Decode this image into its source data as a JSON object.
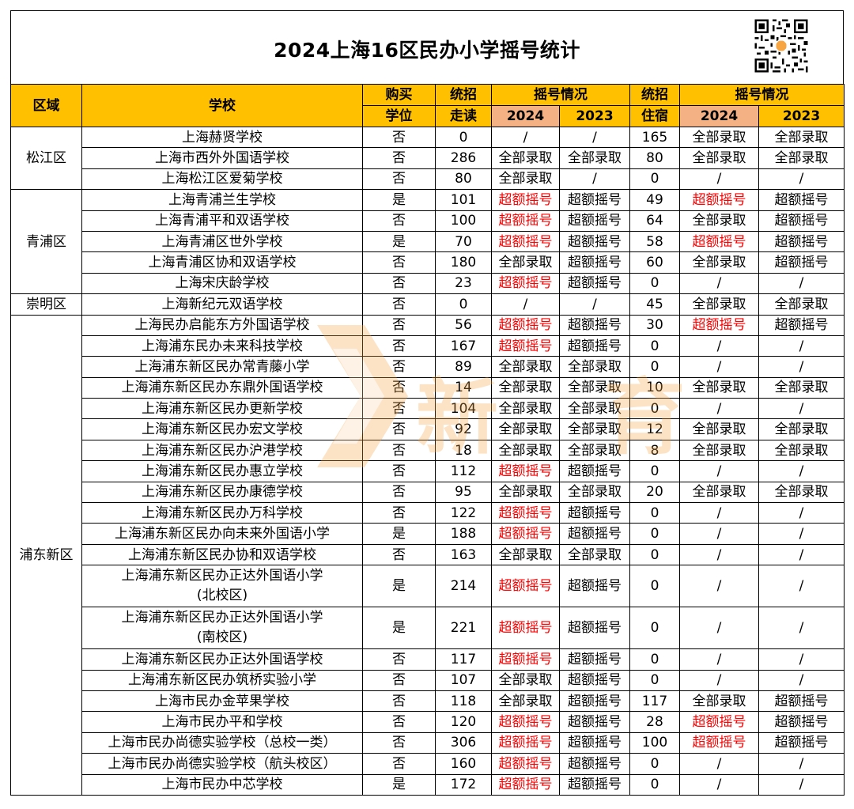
{
  "title": "2024上海16区民办小学摇号统计",
  "colors": {
    "header_yellow": "#FFC000",
    "header_orange": "#F4B183",
    "over_quota": "#FF0000"
  },
  "icons": {
    "qr": "qr-code-icon",
    "logo": "watermark-logo-icon"
  },
  "headers": {
    "district": "区域",
    "school": "学校",
    "purchase_l1": "购买",
    "purchase_l2": "学位",
    "day_l1": "统招",
    "day_l2": "走读",
    "lottery": "摇号情况",
    "y2024": "2024",
    "y2023": "2023",
    "board_l1": "统招",
    "board_l2": "住宿",
    "lottery_b": "摇号情况",
    "y2024_b": "2024",
    "y2023_b": "2023"
  },
  "districts": [
    "松江区",
    "青浦区",
    "崇明区",
    "浦东新区"
  ],
  "rows": [
    {
      "school": "上海赫贤学校",
      "buy": "否",
      "day": "0",
      "d24": "/",
      "d23": "/",
      "board": "165",
      "b24": "全部录取",
      "b23": "全部录取"
    },
    {
      "school": "上海市西外外国语学校",
      "buy": "否",
      "day": "286",
      "d24": "全部录取",
      "d23": "全部录取",
      "board": "80",
      "b24": "全部录取",
      "b23": "全部录取"
    },
    {
      "school": "上海松江区爱菊学校",
      "buy": "否",
      "day": "80",
      "d24": "全部录取",
      "d23": "/",
      "board": "0",
      "b24": "/",
      "b23": "/"
    },
    {
      "school": "上海青浦兰生学校",
      "buy": "是",
      "day": "101",
      "d24": "超额摇号",
      "d23": "超额摇号",
      "board": "49",
      "b24": "超额摇号",
      "b23": "超额摇号"
    },
    {
      "school": "上海青浦平和双语学校",
      "buy": "否",
      "day": "100",
      "d24": "超额摇号",
      "d23": "超额摇号",
      "board": "64",
      "b24": "全部录取",
      "b23": "超额摇号"
    },
    {
      "school": "上海青浦区世外学校",
      "buy": "是",
      "day": "70",
      "d24": "超额摇号",
      "d23": "超额摇号",
      "board": "58",
      "b24": "超额摇号",
      "b23": "超额摇号"
    },
    {
      "school": "上海青浦区协和双语学校",
      "buy": "否",
      "day": "180",
      "d24": "全部录取",
      "d23": "超额摇号",
      "board": "60",
      "b24": "全部录取",
      "b23": "超额摇号"
    },
    {
      "school": "上海宋庆龄学校",
      "buy": "否",
      "day": "23",
      "d24": "超额摇号",
      "d23": "超额摇号",
      "board": "0",
      "b24": "/",
      "b23": "/"
    },
    {
      "school": "上海新纪元双语学校",
      "buy": "否",
      "day": "0",
      "d24": "/",
      "d23": "/",
      "board": "45",
      "b24": "全部录取",
      "b23": "全部录取"
    },
    {
      "school": "上海民办启能东方外国语学校",
      "buy": "否",
      "day": "56",
      "d24": "超额摇号",
      "d23": "超额摇号",
      "board": "30",
      "b24": "超额摇号",
      "b23": "超额摇号"
    },
    {
      "school": "上海浦东民办未来科技学校",
      "buy": "否",
      "day": "167",
      "d24": "超额摇号",
      "d23": "超额摇号",
      "board": "0",
      "b24": "/",
      "b23": "/"
    },
    {
      "school": "上海浦东新区民办常青藤小学",
      "buy": "否",
      "day": "89",
      "d24": "全部录取",
      "d23": "全部录取",
      "board": "0",
      "b24": "/",
      "b23": "/"
    },
    {
      "school": "上海浦东新区民办东鼎外国语学校",
      "buy": "否",
      "day": "14",
      "d24": "全部录取",
      "d23": "全部录取",
      "board": "10",
      "b24": "全部录取",
      "b23": "全部录取"
    },
    {
      "school": "上海浦东新区民办更新学校",
      "buy": "否",
      "day": "104",
      "d24": "全部录取",
      "d23": "全部录取",
      "board": "0",
      "b24": "/",
      "b23": "/"
    },
    {
      "school": "上海浦东新区民办宏文学校",
      "buy": "否",
      "day": "92",
      "d24": "全部录取",
      "d23": "全部录取",
      "board": "12",
      "b24": "全部录取",
      "b23": "全部录取"
    },
    {
      "school": "上海浦东新区民办沪港学校",
      "buy": "否",
      "day": "18",
      "d24": "全部录取",
      "d23": "全部录取",
      "board": "8",
      "b24": "全部录取",
      "b23": "全部录取"
    },
    {
      "school": "上海浦东新区民办惠立学校",
      "buy": "否",
      "day": "112",
      "d24": "超额摇号",
      "d23": "超额摇号",
      "board": "0",
      "b24": "/",
      "b23": "/"
    },
    {
      "school": "上海浦东新区民办康德学校",
      "buy": "否",
      "day": "95",
      "d24": "全部录取",
      "d23": "全部录取",
      "board": "20",
      "b24": "全部录取",
      "b23": "全部录取"
    },
    {
      "school": "上海浦东新区民办万科学校",
      "buy": "否",
      "day": "122",
      "d24": "超额摇号",
      "d23": "超额摇号",
      "board": "0",
      "b24": "/",
      "b23": "/"
    },
    {
      "school": "上海浦东新区民办向未来外国语小学",
      "buy": "是",
      "day": "188",
      "d24": "超额摇号",
      "d23": "超额摇号",
      "board": "0",
      "b24": "/",
      "b23": "/"
    },
    {
      "school": "上海浦东新区民办协和双语学校",
      "buy": "否",
      "day": "163",
      "d24": "全部录取",
      "d23": "全部录取",
      "board": "0",
      "b24": "/",
      "b23": "/"
    },
    {
      "school": "上海浦东新区民办正达外国语小学",
      "school2": "(北校区)",
      "buy": "是",
      "day": "214",
      "d24": "超额摇号",
      "d23": "超额摇号",
      "board": "0",
      "b24": "/",
      "b23": "/"
    },
    {
      "school": "上海浦东新区民办正达外国语小学",
      "school2": "(南校区)",
      "buy": "是",
      "day": "221",
      "d24": "超额摇号",
      "d23": "超额摇号",
      "board": "0",
      "b24": "/",
      "b23": "/"
    },
    {
      "school": "上海浦东新区民办正达外国语学校",
      "buy": "否",
      "day": "117",
      "d24": "超额摇号",
      "d23": "超额摇号",
      "board": "0",
      "b24": "/",
      "b23": "/"
    },
    {
      "school": "上海浦东新区民办筑桥实验小学",
      "buy": "否",
      "day": "107",
      "d24": "全部录取",
      "d23": "超额摇号",
      "board": "0",
      "b24": "/",
      "b23": "/"
    },
    {
      "school": "上海市民办金苹果学校",
      "buy": "否",
      "day": "118",
      "d24": "全部录取",
      "d23": "超额摇号",
      "board": "117",
      "b24": "全部录取",
      "b23": "超额摇号"
    },
    {
      "school": "上海市民办平和学校",
      "buy": "否",
      "day": "120",
      "d24": "超额摇号",
      "d23": "超额摇号",
      "board": "28",
      "b24": "超额摇号",
      "b23": "超额摇号"
    },
    {
      "school": "上海市民办尚德实验学校（总校一类）",
      "buy": "否",
      "day": "306",
      "d24": "超额摇号",
      "d23": "超额摇号",
      "board": "100",
      "b24": "超额摇号",
      "b23": "超额摇号"
    },
    {
      "school": "上海市民办尚德实验学校（航头校区）",
      "buy": "否",
      "day": "160",
      "d24": "超额摇号",
      "d23": "超额摇号",
      "board": "0",
      "b24": "/",
      "b23": "/"
    },
    {
      "school": "上海市民办中芯学校",
      "buy": "是",
      "day": "172",
      "d24": "超额摇号",
      "d23": "超额摇号",
      "board": "0",
      "b24": "/",
      "b23": "/"
    }
  ]
}
